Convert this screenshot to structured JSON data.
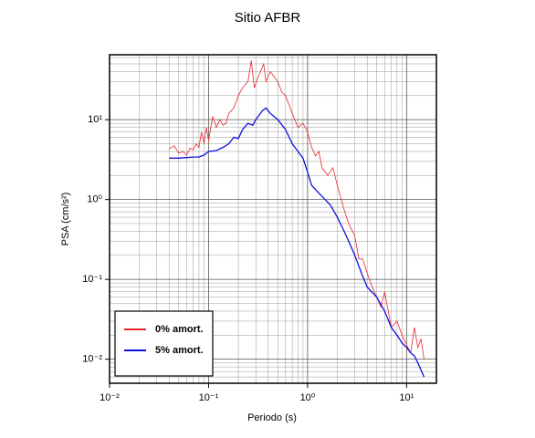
{
  "chart_data": {
    "type": "line",
    "title": "Sitio AFBR",
    "xlabel": "Periodo (s)",
    "ylabel": "PSA (cm/s²)",
    "xscale": "log",
    "yscale": "log",
    "grid": true,
    "minor_grid": true,
    "legend": "lower left",
    "xlim": [
      0.01,
      20
    ],
    "ylim": [
      0.005,
      65
    ],
    "xticks": [
      {
        "value": 0.01,
        "label": "10⁻²"
      },
      {
        "value": 0.1,
        "label": "10⁻¹"
      },
      {
        "value": 1,
        "label": "10⁰"
      },
      {
        "value": 10,
        "label": "10¹"
      }
    ],
    "yticks": [
      {
        "value": 0.01,
        "label": "10⁻²"
      },
      {
        "value": 0.1,
        "label": "10⁻¹"
      },
      {
        "value": 1,
        "label": "10⁰"
      },
      {
        "value": 10,
        "label": "10¹"
      }
    ],
    "series": [
      {
        "name": "0% amort.",
        "color": "#e8262a",
        "x": [
          0.04,
          0.045,
          0.05,
          0.055,
          0.06,
          0.065,
          0.07,
          0.075,
          0.08,
          0.085,
          0.09,
          0.095,
          0.1,
          0.11,
          0.12,
          0.13,
          0.14,
          0.15,
          0.16,
          0.18,
          0.2,
          0.22,
          0.25,
          0.27,
          0.29,
          0.32,
          0.36,
          0.38,
          0.42,
          0.5,
          0.55,
          0.6,
          0.7,
          0.8,
          0.9,
          1.0,
          1.1,
          1.2,
          1.3,
          1.4,
          1.6,
          1.8,
          2.0,
          2.3,
          2.6,
          3.0,
          3.3,
          3.6,
          4,
          4.5,
          5,
          5.5,
          6,
          7,
          8,
          9,
          10,
          11,
          12,
          13,
          14,
          15
        ],
        "values": [
          4.3,
          4.7,
          3.8,
          4.0,
          3.6,
          4.4,
          4.2,
          5.0,
          4.5,
          7.0,
          5.0,
          8.0,
          5.5,
          11,
          8,
          10,
          8.5,
          9,
          12,
          14,
          20,
          25,
          30,
          55,
          25,
          35,
          50,
          30,
          40,
          30,
          22,
          20,
          12,
          8,
          9,
          7,
          4.5,
          3.5,
          4,
          2.5,
          2.0,
          2.5,
          1.5,
          0.8,
          0.5,
          0.35,
          0.18,
          0.18,
          0.12,
          0.08,
          0.06,
          0.045,
          0.07,
          0.025,
          0.03,
          0.02,
          0.015,
          0.012,
          0.025,
          0.014,
          0.018,
          0.01
        ]
      },
      {
        "name": "5% amort.",
        "color": "#1010e0",
        "x": [
          0.04,
          0.05,
          0.06,
          0.07,
          0.08,
          0.09,
          0.1,
          0.12,
          0.14,
          0.16,
          0.18,
          0.2,
          0.22,
          0.25,
          0.28,
          0.3,
          0.35,
          0.38,
          0.42,
          0.5,
          0.6,
          0.7,
          0.8,
          0.9,
          1.0,
          1.1,
          1.3,
          1.5,
          1.7,
          2.0,
          2.3,
          2.6,
          3.0,
          3.5,
          4,
          5,
          6,
          7,
          8,
          9,
          10,
          11,
          12,
          13,
          15
        ],
        "values": [
          3.3,
          3.3,
          3.35,
          3.4,
          3.4,
          3.6,
          4.0,
          4.1,
          4.5,
          5.0,
          6.0,
          5.8,
          7.5,
          9,
          8.5,
          10,
          13,
          14,
          12,
          10,
          7.5,
          5,
          4,
          3.3,
          2.2,
          1.5,
          1.2,
          1.0,
          0.85,
          0.6,
          0.42,
          0.3,
          0.2,
          0.12,
          0.08,
          0.06,
          0.04,
          0.025,
          0.02,
          0.016,
          0.014,
          0.012,
          0.011,
          0.009,
          0.006
        ]
      }
    ]
  }
}
